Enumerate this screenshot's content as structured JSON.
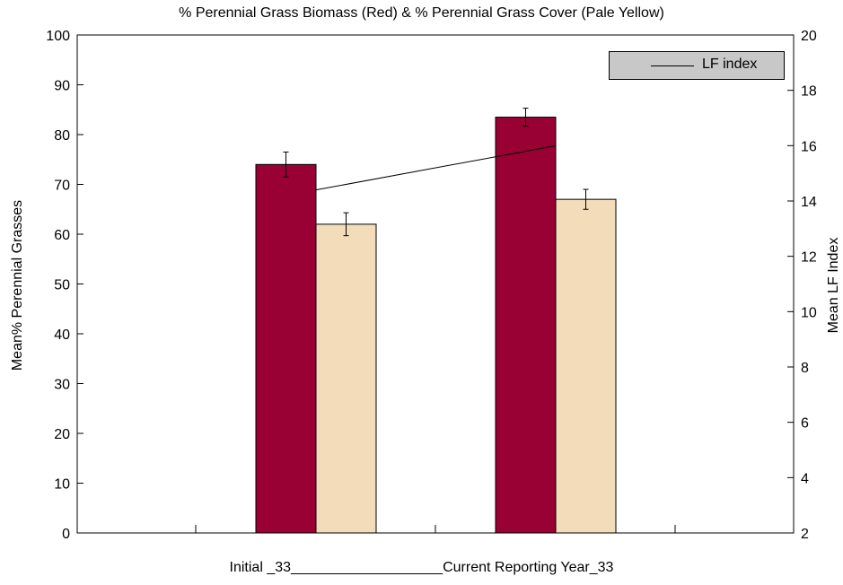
{
  "chart_data": {
    "type": "bar",
    "title": "% Perennial Grass Biomass (Red) & % Perennial Grass Cover (Pale Yellow)",
    "xlabel": "Initial _33___________________Current Reporting Year_33",
    "ylabel": "Mean% Perennial Grasses",
    "y2label": "Mean LF Index",
    "ylim": [
      0,
      100
    ],
    "y2lim": [
      2,
      20
    ],
    "yticks": [
      0,
      10,
      20,
      30,
      40,
      50,
      60,
      70,
      80,
      90,
      100
    ],
    "y2ticks": [
      2,
      4,
      6,
      8,
      10,
      12,
      14,
      16,
      18,
      20
    ],
    "categories": [
      "Initial",
      "Current Reporting Year"
    ],
    "series": [
      {
        "values": [
          74,
          83.5
        ],
        "errors": [
          2.5,
          1.8
        ],
        "color": "#990033",
        "axis": "left"
      },
      {
        "values": [
          62,
          67
        ],
        "errors": [
          2.3,
          2.0
        ],
        "color": "#f3dcba",
        "axis": "left"
      },
      {
        "name": "LF index",
        "type": "line",
        "values": [
          14.4,
          16
        ],
        "color": "#000000",
        "axis": "right"
      }
    ],
    "legend": {
      "position": "top-right",
      "entries": [
        "LF index"
      ]
    },
    "grid": false
  }
}
